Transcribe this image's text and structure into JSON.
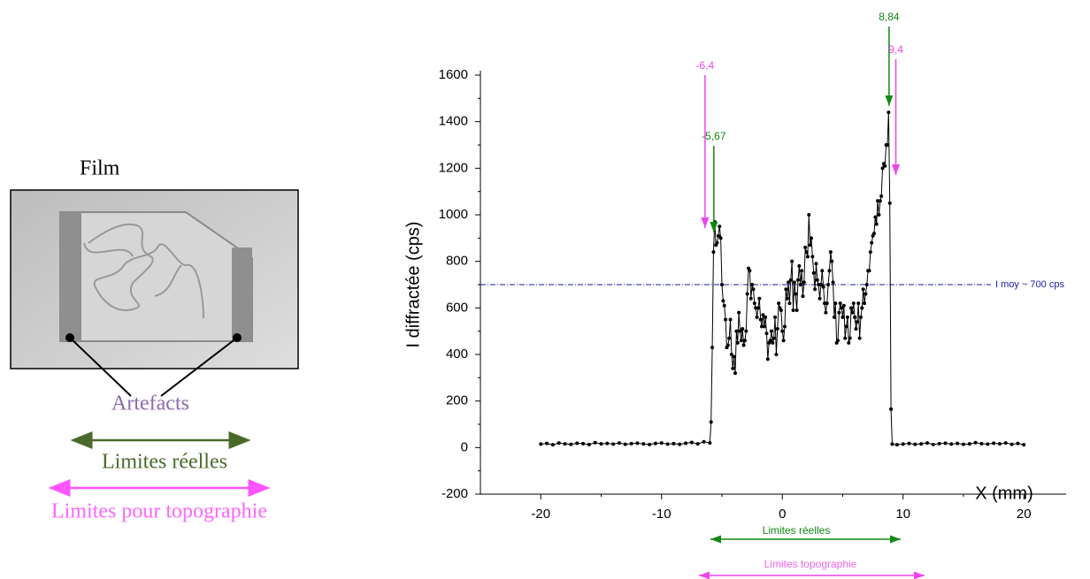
{
  "diagram": {
    "title": "Film",
    "artefacts": "Artefacts",
    "limits_real": "Limites réelles",
    "limits_topo": "Limites pour topographie"
  },
  "chart_data": {
    "type": "line",
    "x_label": "X (mm)",
    "y_label": "I diffractée (cps)",
    "color": "#000000",
    "x": [
      -20,
      -19.5,
      -19,
      -18.5,
      -18,
      -17.5,
      -17,
      -16.5,
      -16,
      -15.5,
      -15,
      -14.5,
      -14,
      -13.5,
      -13,
      -12.5,
      -12,
      -11.5,
      -11,
      -10.5,
      -10,
      -9.5,
      -9,
      -8.5,
      -8,
      -7.5,
      -7,
      -6.5,
      -6,
      -5.9,
      -5.8,
      -5.7,
      -5.6,
      -5.5,
      -5.4,
      -5.3,
      -5.2,
      -5.1,
      -5,
      -4.9,
      -4.8,
      -4.7,
      -4.6,
      -4.5,
      -4.4,
      -4.3,
      -4.2,
      -4.1,
      -4,
      -3.9,
      -3.8,
      -3.7,
      -3.6,
      -3.5,
      -3.4,
      -3.3,
      -3.2,
      -3.1,
      -3,
      -2.9,
      -2.8,
      -2.7,
      -2.6,
      -2.5,
      -2.4,
      -2.3,
      -2.2,
      -2.1,
      -2,
      -1.9,
      -1.8,
      -1.7,
      -1.6,
      -1.5,
      -1.4,
      -1.3,
      -1.2,
      -1.1,
      -1,
      -0.9,
      -0.8,
      -0.7,
      -0.6,
      -0.5,
      -0.4,
      -0.3,
      -0.2,
      -0.1,
      0,
      0.1,
      0.2,
      0.3,
      0.4,
      0.5,
      0.6,
      0.7,
      0.8,
      0.9,
      1,
      1.1,
      1.2,
      1.3,
      1.4,
      1.5,
      1.6,
      1.7,
      1.8,
      1.9,
      2,
      2.1,
      2.2,
      2.3,
      2.4,
      2.5,
      2.6,
      2.7,
      2.8,
      2.9,
      3,
      3.1,
      3.2,
      3.3,
      3.4,
      3.5,
      3.6,
      3.7,
      3.8,
      3.9,
      4,
      4.1,
      4.2,
      4.3,
      4.4,
      4.5,
      4.6,
      4.7,
      4.8,
      4.9,
      5,
      5.1,
      5.2,
      5.3,
      5.4,
      5.5,
      5.6,
      5.7,
      5.8,
      5.9,
      6,
      6.1,
      6.2,
      6.3,
      6.4,
      6.5,
      6.6,
      6.7,
      6.8,
      6.9,
      7,
      7.1,
      7.2,
      7.3,
      7.4,
      7.5,
      7.6,
      7.7,
      7.8,
      7.9,
      8,
      8.1,
      8.2,
      8.3,
      8.4,
      8.5,
      8.6,
      8.7,
      8.8,
      8.9,
      9,
      9.1,
      9.5,
      10,
      10.5,
      11,
      11.5,
      12,
      12.5,
      13,
      13.5,
      14,
      14.5,
      15,
      15.5,
      16,
      16.5,
      17,
      17.5,
      18,
      18.5,
      19,
      19.5,
      20
    ],
    "values": [
      15,
      18,
      12,
      20,
      16,
      14,
      19,
      17,
      13,
      21,
      16,
      18,
      15,
      20,
      14,
      17,
      19,
      16,
      13,
      18,
      20,
      15,
      17,
      14,
      19,
      22,
      16,
      25,
      20,
      110,
      430,
      840,
      970,
      870,
      880,
      910,
      950,
      900,
      700,
      630,
      610,
      550,
      430,
      440,
      470,
      550,
      400,
      340,
      390,
      320,
      500,
      450,
      580,
      500,
      460,
      510,
      440,
      460,
      500,
      660,
      770,
      760,
      640,
      700,
      680,
      620,
      600,
      560,
      600,
      640,
      550,
      520,
      570,
      520,
      560,
      490,
      380,
      450,
      460,
      500,
      450,
      470,
      560,
      400,
      510,
      620,
      600,
      590,
      500,
      460,
      520,
      680,
      640,
      710,
      620,
      720,
      800,
      590,
      710,
      660,
      590,
      720,
      780,
      700,
      760,
      650,
      710,
      860,
      840,
      820,
      1000,
      870,
      900,
      820,
      750,
      680,
      790,
      720,
      700,
      640,
      700,
      760,
      690,
      620,
      580,
      620,
      700,
      760,
      840,
      800,
      710,
      560,
      620,
      450,
      460,
      580,
      620,
      600,
      560,
      610,
      470,
      520,
      560,
      450,
      470,
      600,
      580,
      620,
      560,
      510,
      540,
      620,
      470,
      560,
      600,
      680,
      620,
      660,
      700,
      760,
      760,
      840,
      880,
      910,
      920,
      990,
      960,
      1060,
      1000,
      1060,
      1080,
      1200,
      1220,
      1210,
      1300,
      1300,
      1440,
      1050,
      165,
      15,
      12,
      15,
      18,
      14,
      16,
      20,
      13,
      17,
      19,
      15,
      18,
      14,
      16,
      21,
      17,
      15,
      19,
      16,
      20,
      14,
      18,
      12
    ],
    "xlim": [
      -25,
      23.5
    ],
    "xticks": [
      -20,
      -10,
      0,
      10,
      20
    ],
    "ylim": [
      -200,
      1600
    ],
    "yticks": [
      -200,
      0,
      200,
      400,
      600,
      800,
      1000,
      1200,
      1400,
      1600
    ],
    "reference_line": {
      "value": 700,
      "label": "I moy ~ 700 cps",
      "color": "#1a1aa6"
    },
    "annotations": [
      {
        "x": -6.4,
        "y": 943,
        "label": "-6,4",
        "color": "#ee44ee"
      },
      {
        "x": -5.67,
        "y": 924,
        "label": "-5,67",
        "color": "#118811"
      },
      {
        "x": 8.84,
        "y": 1468,
        "label": "8,84",
        "color": "#118811"
      },
      {
        "x": 9.4,
        "y": 1171,
        "label": "9,4",
        "color": "#ee44ee"
      }
    ],
    "range_labels": [
      "Limites réelles",
      "Limites topographie"
    ]
  }
}
